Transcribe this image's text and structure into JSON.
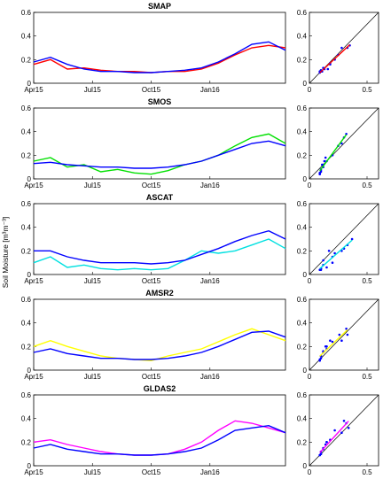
{
  "figure": {
    "ylabel": "Soil Moisture [m³m⁻³]",
    "time_ticks": [
      "Apr15",
      "Jul15",
      "Oct15",
      "Jan16"
    ],
    "scatter_ticks": [
      "0",
      "0.5"
    ],
    "ylim": [
      0,
      0.6
    ],
    "yticks": [
      "0",
      "0.2",
      "0.4",
      "0.6"
    ],
    "reference_color": "#0000ff"
  },
  "chart_data": [
    {
      "type": "line",
      "title": "SMAP",
      "color": "#ff0000",
      "x": [
        0,
        2,
        4,
        6,
        8,
        10,
        12,
        14,
        16,
        18,
        20,
        22,
        24,
        26,
        28,
        30
      ],
      "series": [
        {
          "values": [
            0.16,
            0.2,
            0.12,
            0.13,
            0.11,
            0.1,
            0.1,
            0.09,
            0.1,
            0.1,
            0.12,
            0.17,
            0.24,
            0.3,
            0.32,
            0.3
          ]
        },
        {
          "values": [
            0.18,
            0.22,
            0.16,
            0.12,
            0.1,
            0.1,
            0.09,
            0.09,
            0.1,
            0.11,
            0.13,
            0.18,
            0.25,
            0.33,
            0.35,
            0.28
          ]
        }
      ],
      "ylim": [
        0,
        0.6
      ]
    },
    {
      "type": "line",
      "title": "SMOS",
      "color": "#00e000",
      "x": [
        0,
        2,
        4,
        6,
        8,
        10,
        12,
        14,
        16,
        18,
        20,
        22,
        24,
        26,
        28,
        30
      ],
      "series": [
        {
          "values": [
            0.15,
            0.18,
            0.1,
            0.12,
            0.06,
            0.08,
            0.05,
            0.04,
            0.07,
            0.12,
            0.15,
            0.2,
            0.28,
            0.35,
            0.38,
            0.3
          ]
        },
        {
          "values": [
            0.13,
            0.14,
            0.12,
            0.11,
            0.1,
            0.1,
            0.09,
            0.09,
            0.1,
            0.12,
            0.15,
            0.2,
            0.25,
            0.3,
            0.32,
            0.28
          ]
        }
      ],
      "ylim": [
        0,
        0.6
      ]
    },
    {
      "type": "line",
      "title": "ASCAT",
      "color": "#00e0e0",
      "x": [
        0,
        2,
        4,
        6,
        8,
        10,
        12,
        14,
        16,
        18,
        20,
        22,
        24,
        26,
        28,
        30
      ],
      "series": [
        {
          "values": [
            0.1,
            0.15,
            0.06,
            0.08,
            0.05,
            0.04,
            0.05,
            0.04,
            0.05,
            0.12,
            0.2,
            0.18,
            0.2,
            0.25,
            0.3,
            0.22
          ]
        },
        {
          "values": [
            0.2,
            0.2,
            0.15,
            0.12,
            0.1,
            0.1,
            0.1,
            0.09,
            0.1,
            0.12,
            0.17,
            0.22,
            0.28,
            0.33,
            0.37,
            0.3
          ]
        }
      ],
      "ylim": [
        0,
        0.6
      ]
    },
    {
      "type": "line",
      "title": "AMSR2",
      "color": "#ffff00",
      "x": [
        0,
        2,
        4,
        6,
        8,
        10,
        12,
        14,
        16,
        18,
        20,
        22,
        24,
        26,
        28,
        30
      ],
      "series": [
        {
          "values": [
            0.2,
            0.25,
            0.2,
            0.16,
            0.12,
            0.1,
            0.09,
            0.08,
            0.12,
            0.15,
            0.18,
            0.24,
            0.3,
            0.35,
            0.3,
            0.25
          ]
        },
        {
          "values": [
            0.15,
            0.18,
            0.14,
            0.12,
            0.1,
            0.1,
            0.09,
            0.09,
            0.1,
            0.12,
            0.15,
            0.2,
            0.26,
            0.32,
            0.33,
            0.28
          ]
        }
      ],
      "ylim": [
        0,
        0.6
      ]
    },
    {
      "type": "line",
      "title": "GLDAS2",
      "color": "#ff00ff",
      "x": [
        0,
        2,
        4,
        6,
        8,
        10,
        12,
        14,
        16,
        18,
        20,
        22,
        24,
        26,
        28,
        30
      ],
      "series": [
        {
          "values": [
            0.2,
            0.22,
            0.18,
            0.15,
            0.12,
            0.1,
            0.09,
            0.09,
            0.1,
            0.14,
            0.2,
            0.3,
            0.38,
            0.36,
            0.32,
            0.28
          ]
        },
        {
          "values": [
            0.15,
            0.18,
            0.14,
            0.12,
            0.1,
            0.1,
            0.09,
            0.09,
            0.1,
            0.12,
            0.15,
            0.22,
            0.3,
            0.32,
            0.34,
            0.28
          ]
        }
      ],
      "ylim": [
        0,
        0.6
      ]
    }
  ]
}
